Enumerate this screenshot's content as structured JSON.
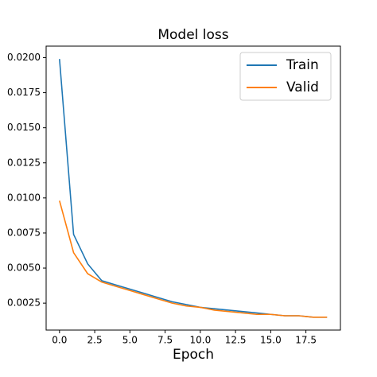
{
  "chart_data": {
    "type": "line",
    "title": "Model loss",
    "xlabel": "Epoch",
    "x": [
      0,
      1,
      2,
      3,
      4,
      5,
      6,
      7,
      8,
      9,
      10,
      11,
      12,
      13,
      14,
      15,
      16,
      17,
      18,
      19
    ],
    "series": [
      {
        "name": "Train",
        "color": "#1f77b4",
        "values": [
          0.0199,
          0.0074,
          0.0053,
          0.0041,
          0.0038,
          0.0035,
          0.0032,
          0.0029,
          0.0026,
          0.0024,
          0.0022,
          0.0021,
          0.002,
          0.0019,
          0.0018,
          0.0017,
          0.0016,
          0.0016,
          0.0015,
          0.0015
        ]
      },
      {
        "name": "Valid",
        "color": "#ff7f0e",
        "values": [
          0.0098,
          0.0061,
          0.0046,
          0.004,
          0.0037,
          0.0034,
          0.0031,
          0.0028,
          0.0025,
          0.0023,
          0.0022,
          0.002,
          0.0019,
          0.0018,
          0.0017,
          0.0017,
          0.0016,
          0.0016,
          0.0015,
          0.0015
        ]
      }
    ],
    "xlim": [
      -0.95,
      19.95
    ],
    "xticks": [
      {
        "value": 0,
        "label": "0.0"
      },
      {
        "value": 2.5,
        "label": "2.5"
      },
      {
        "value": 5,
        "label": "5.0"
      },
      {
        "value": 7.5,
        "label": "7.5"
      },
      {
        "value": 10,
        "label": "10.0"
      },
      {
        "value": 12.5,
        "label": "12.5"
      },
      {
        "value": 15,
        "label": "15.0"
      },
      {
        "value": 17.5,
        "label": "17.5"
      }
    ],
    "ylim": [
      0.00058,
      0.02082
    ],
    "yticks": [
      {
        "value": 0.0025,
        "label": "0.0025"
      },
      {
        "value": 0.005,
        "label": "0.0050"
      },
      {
        "value": 0.0075,
        "label": "0.0075"
      },
      {
        "value": 0.01,
        "label": "0.0100"
      },
      {
        "value": 0.0125,
        "label": "0.0125"
      },
      {
        "value": 0.015,
        "label": "0.0150"
      },
      {
        "value": 0.0175,
        "label": "0.0175"
      },
      {
        "value": 0.02,
        "label": "0.0200"
      }
    ],
    "legend": "upper right"
  }
}
